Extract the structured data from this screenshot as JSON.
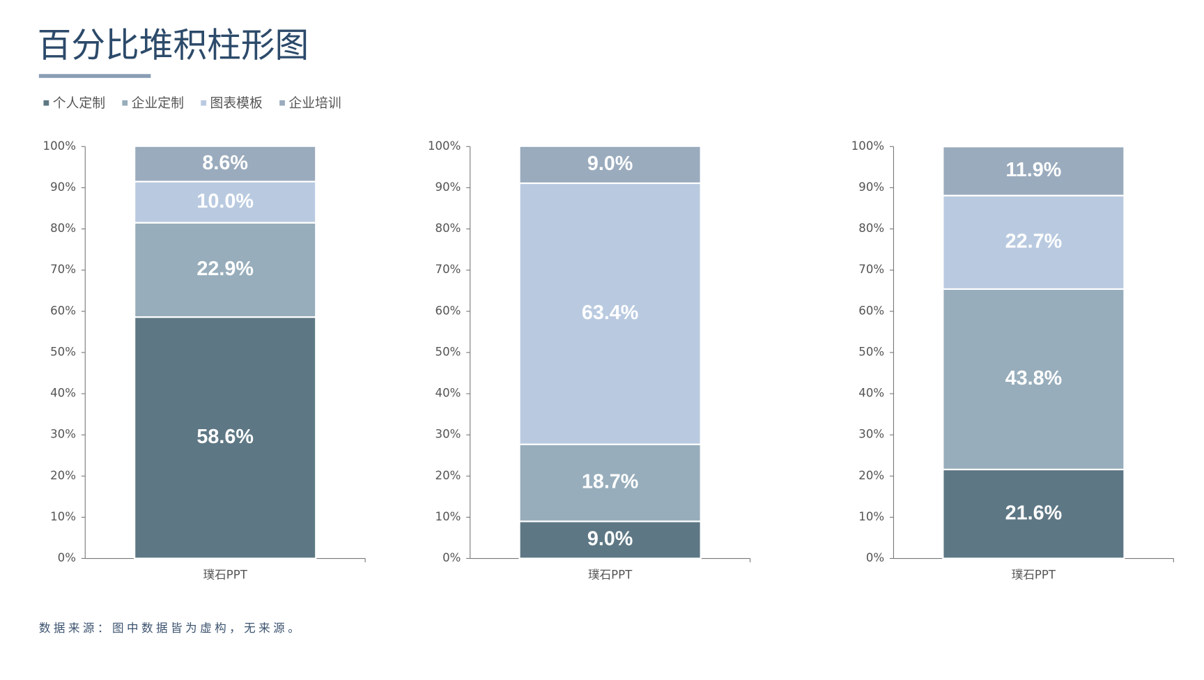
{
  "title": "百分比堆积柱形图",
  "source": "数据来源：图中数据皆为虚构，无来源。",
  "chart_data": [
    {
      "type": "bar",
      "stacked": true,
      "categories": [
        "璞石PPT"
      ],
      "ylim": [
        0,
        100
      ],
      "yticks": [
        {
          "value": 0,
          "label": "0%"
        },
        {
          "value": 10,
          "label": "10%"
        },
        {
          "value": 20,
          "label": "20%"
        },
        {
          "value": 30,
          "label": "30%"
        },
        {
          "value": 40,
          "label": "40%"
        },
        {
          "value": 50,
          "label": "50%"
        },
        {
          "value": 60,
          "label": "60%"
        },
        {
          "value": 70,
          "label": "70%"
        },
        {
          "value": 80,
          "label": "80%"
        },
        {
          "value": 90,
          "label": "90%"
        },
        {
          "value": 100,
          "label": "100%"
        }
      ],
      "series": [
        {
          "name": "个人定制",
          "color": "#5e7784",
          "values": [
            58.6
          ],
          "value_labels": [
            "58.6%"
          ]
        },
        {
          "name": "企业定制",
          "color": "#97adbb",
          "values": [
            22.9
          ],
          "value_labels": [
            "22.9%"
          ]
        },
        {
          "name": "图表模板",
          "color": "#b9cae0",
          "values": [
            10.0
          ],
          "value_labels": [
            "10.0%"
          ]
        },
        {
          "name": "企业培训",
          "color": "#9aabbd",
          "values": [
            8.6
          ],
          "value_labels": [
            "8.6%"
          ]
        }
      ]
    },
    {
      "type": "bar",
      "stacked": true,
      "categories": [
        "璞石PPT"
      ],
      "ylim": [
        0,
        100
      ],
      "yticks": [
        {
          "value": 0,
          "label": "0%"
        },
        {
          "value": 10,
          "label": "10%"
        },
        {
          "value": 20,
          "label": "20%"
        },
        {
          "value": 30,
          "label": "30%"
        },
        {
          "value": 40,
          "label": "40%"
        },
        {
          "value": 50,
          "label": "50%"
        },
        {
          "value": 60,
          "label": "60%"
        },
        {
          "value": 70,
          "label": "70%"
        },
        {
          "value": 80,
          "label": "80%"
        },
        {
          "value": 90,
          "label": "90%"
        },
        {
          "value": 100,
          "label": "100%"
        }
      ],
      "series": [
        {
          "name": "个人定制",
          "color": "#5e7784",
          "values": [
            9.0
          ],
          "value_labels": [
            "9.0%"
          ]
        },
        {
          "name": "企业定制",
          "color": "#97adbb",
          "values": [
            18.7
          ],
          "value_labels": [
            "18.7%"
          ]
        },
        {
          "name": "图表模板",
          "color": "#b9cae0",
          "values": [
            63.4
          ],
          "value_labels": [
            "63.4%"
          ]
        },
        {
          "name": "企业培训",
          "color": "#9aabbd",
          "values": [
            9.0
          ],
          "value_labels": [
            "9.0%"
          ]
        }
      ]
    },
    {
      "type": "bar",
      "stacked": true,
      "categories": [
        "璞石PPT"
      ],
      "ylim": [
        0,
        100
      ],
      "yticks": [
        {
          "value": 0,
          "label": "0%"
        },
        {
          "value": 10,
          "label": "10%"
        },
        {
          "value": 20,
          "label": "20%"
        },
        {
          "value": 30,
          "label": "30%"
        },
        {
          "value": 40,
          "label": "40%"
        },
        {
          "value": 50,
          "label": "50%"
        },
        {
          "value": 60,
          "label": "60%"
        },
        {
          "value": 70,
          "label": "70%"
        },
        {
          "value": 80,
          "label": "80%"
        },
        {
          "value": 90,
          "label": "90%"
        },
        {
          "value": 100,
          "label": "100%"
        }
      ],
      "series": [
        {
          "name": "个人定制",
          "color": "#5e7784",
          "values": [
            21.6
          ],
          "value_labels": [
            "21.6%"
          ]
        },
        {
          "name": "企业定制",
          "color": "#97adbb",
          "values": [
            43.8
          ],
          "value_labels": [
            "43.8%"
          ]
        },
        {
          "name": "图表模板",
          "color": "#b9cae0",
          "values": [
            22.7
          ],
          "value_labels": [
            "22.7%"
          ]
        },
        {
          "name": "企业培训",
          "color": "#9aabbd",
          "values": [
            11.9
          ],
          "value_labels": [
            "11.9%"
          ]
        }
      ]
    }
  ]
}
